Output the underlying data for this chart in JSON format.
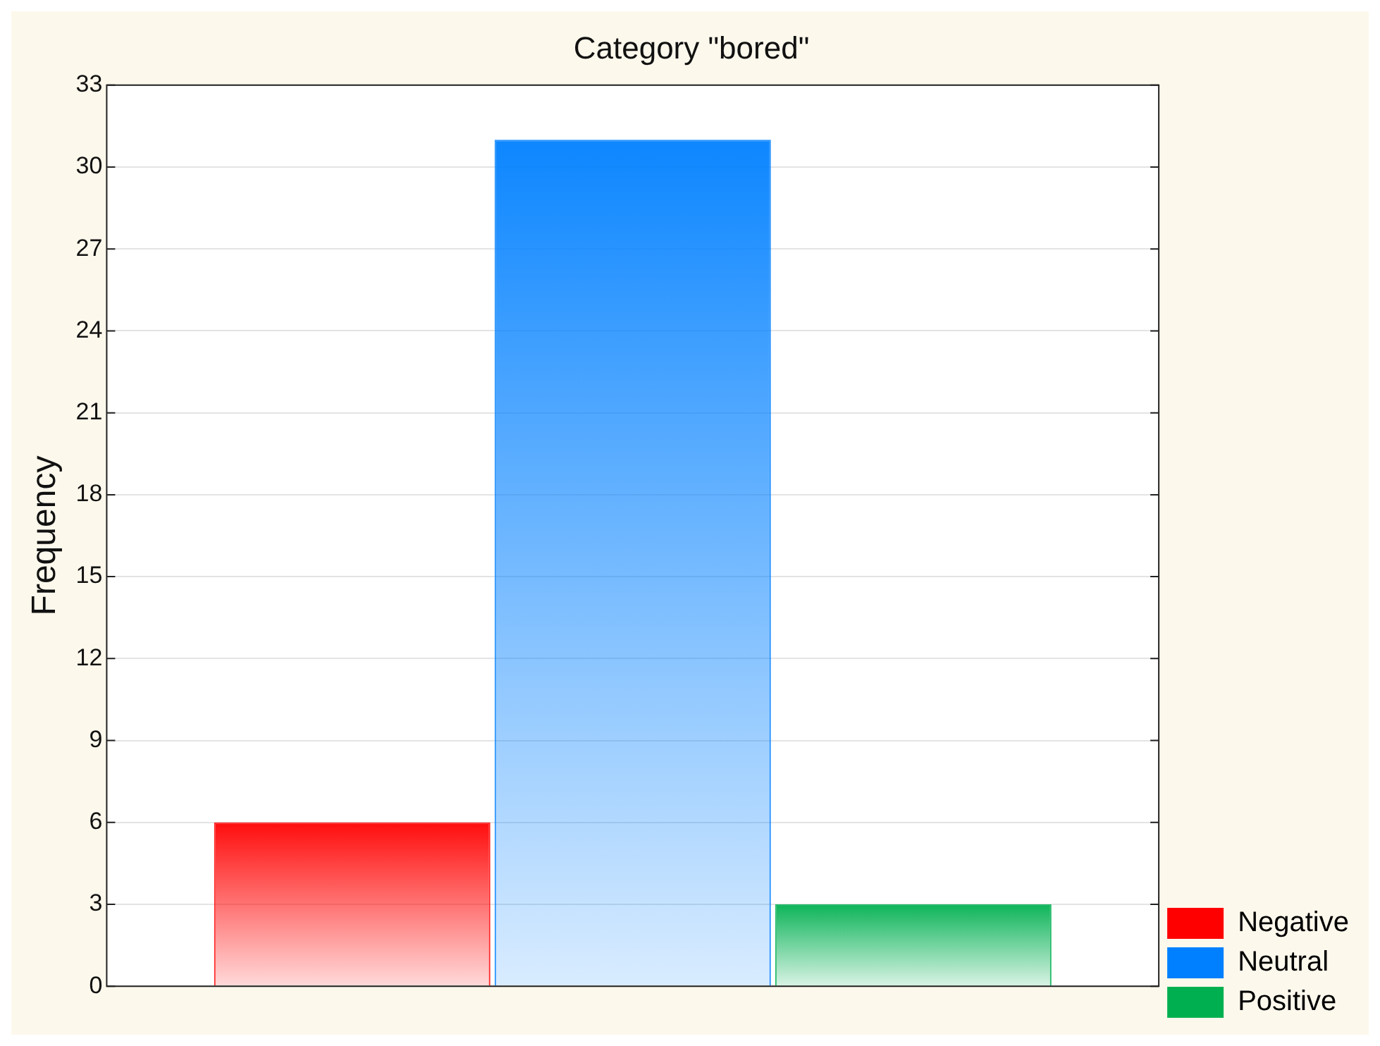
{
  "chart_data": {
    "type": "bar",
    "title": "Category \"bored\"",
    "ylabel": "Frequency",
    "categories": [
      null
    ],
    "series": [
      {
        "name": "Negative",
        "color": "#ff0000",
        "values": [
          6
        ]
      },
      {
        "name": "Neutral",
        "color": "#0080ff",
        "values": [
          31
        ]
      },
      {
        "name": "Positive",
        "color": "#00b050",
        "values": [
          3
        ]
      }
    ],
    "ylim": [
      0,
      33
    ],
    "yticks": [
      0,
      3,
      6,
      9,
      12,
      15,
      18,
      21,
      24,
      27,
      30,
      33
    ],
    "grid": "y",
    "legend": "bottom right"
  }
}
